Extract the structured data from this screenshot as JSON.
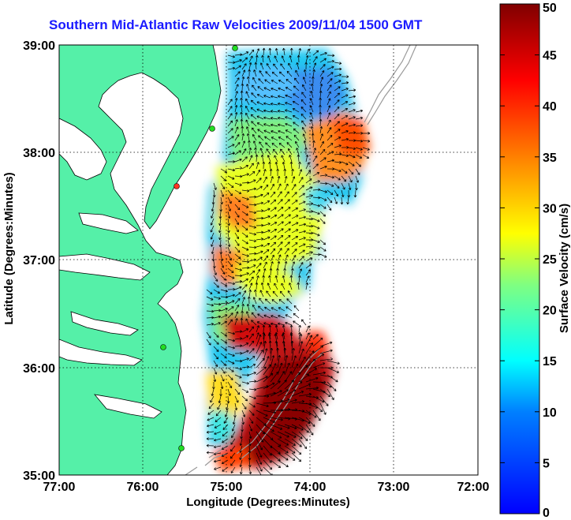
{
  "title": "Southern Mid-Atlantic Raw Velocities 2009/11/04 1500 GMT",
  "xlabel": "Longitude (Degrees:Minutes)",
  "ylabel": "Latitude (Degrees:Minutes)",
  "colorbar_label": "Surface Velocity (cm/s)",
  "x_ticks": [
    "77:00",
    "76:00",
    "75:00",
    "74:00",
    "73:00",
    "72:00"
  ],
  "y_ticks": [
    "39:00",
    "38:00",
    "37:00",
    "36:00",
    "35:00"
  ],
  "colorbar_ticks": [
    "0",
    "5",
    "10",
    "15",
    "20",
    "25",
    "30",
    "35",
    "40",
    "45",
    "50"
  ],
  "colors": {
    "land": "#55f0a8",
    "title": "#1a1aff",
    "grid": "#000000",
    "bathymetry": "#9a9a9a",
    "station": "#22dd22",
    "station_highlight": "#ff3322"
  },
  "map": {
    "lon_range": [
      -77,
      -72
    ],
    "lat_range": [
      35,
      39
    ],
    "grid": "dotted",
    "colormap": "jet",
    "value_range": [
      0,
      50
    ]
  }
}
